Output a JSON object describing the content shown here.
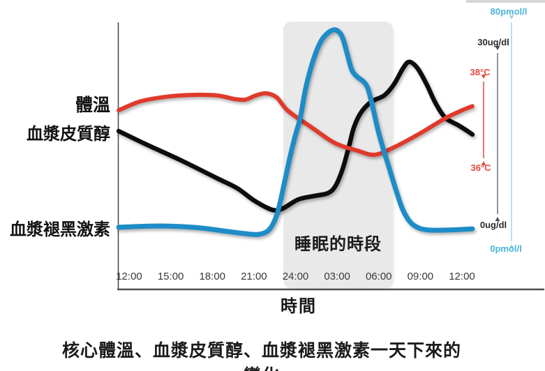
{
  "caption": "核心體溫、血漿皮質醇、血漿褪黑激素一天下來的變化",
  "chart_data": {
    "type": "line",
    "title": "",
    "x_axis": {
      "label": "時間",
      "tick_labels": [
        "12:00",
        "15:00",
        "18:00",
        "21:00",
        "24:00",
        "03:00",
        "06:00",
        "09:00",
        "12:00"
      ],
      "tick_hours": [
        12,
        15,
        18,
        21,
        24,
        27,
        30,
        33,
        36
      ]
    },
    "sleep_band": {
      "label": "睡眠的時段",
      "start_hour": 23.1,
      "end_hour": 31.0,
      "color": "#e9e9e9"
    },
    "series": [
      {
        "name": "體溫",
        "color": "#e03a2b",
        "axis": {
          "max_label": "38°C",
          "min_label": "36°C",
          "max": 38,
          "min": 36,
          "unit": "°C",
          "label_color": "#e2493c"
        },
        "points": [
          [
            11.25,
            37.24
          ],
          [
            12.75,
            37.45
          ],
          [
            14.5,
            37.56
          ],
          [
            16.3,
            37.61
          ],
          [
            18.3,
            37.6
          ],
          [
            19.65,
            37.51
          ],
          [
            20.4,
            37.5
          ],
          [
            21.15,
            37.6
          ],
          [
            21.9,
            37.65
          ],
          [
            22.65,
            37.55
          ],
          [
            23.45,
            37.23
          ],
          [
            25.2,
            36.82
          ],
          [
            26.85,
            36.45
          ],
          [
            28.45,
            36.27
          ],
          [
            29.7,
            36.17
          ],
          [
            31.1,
            36.35
          ],
          [
            32.9,
            36.67
          ],
          [
            34.75,
            37.04
          ],
          [
            36.0,
            37.24
          ],
          [
            36.75,
            37.34
          ]
        ]
      },
      {
        "name": "血漿皮質醇",
        "color": "#0d0d0d",
        "axis": {
          "max_label": "30ug/dl",
          "min_label": "0ug/dl",
          "max": 30,
          "min": 0,
          "unit": "ug/dl",
          "label_color": "#2b2b2b"
        },
        "points": [
          [
            11.25,
            15.5
          ],
          [
            13.25,
            13.1
          ],
          [
            15.75,
            10.25
          ],
          [
            18.3,
            7.1
          ],
          [
            19.8,
            5.25
          ],
          [
            21.05,
            3.0
          ],
          [
            22.3,
            1.4
          ],
          [
            23.05,
            1.6
          ],
          [
            24.2,
            3.25
          ],
          [
            25.4,
            3.9
          ],
          [
            26.35,
            4.4
          ],
          [
            26.9,
            5.75
          ],
          [
            27.4,
            8.75
          ],
          [
            27.85,
            12.75
          ],
          [
            28.2,
            16.1
          ],
          [
            28.7,
            18.75
          ],
          [
            29.45,
            20.75
          ],
          [
            30.4,
            21.9
          ],
          [
            31.1,
            23.9
          ],
          [
            31.75,
            26.75
          ],
          [
            32.2,
            27.9
          ],
          [
            32.8,
            26.75
          ],
          [
            33.45,
            23.9
          ],
          [
            34.1,
            20.5
          ],
          [
            34.8,
            17.9
          ],
          [
            35.7,
            16.6
          ],
          [
            36.4,
            15.5
          ],
          [
            36.75,
            14.9
          ]
        ]
      },
      {
        "name": "血漿褪黑激素",
        "color": "#1d8cc7",
        "axis": {
          "max_label": "80pmol/l",
          "min_label": "0pmol/l",
          "max": 80,
          "min": 0,
          "unit": "pmol/l",
          "label_color": "#49b4d9"
        },
        "points": [
          [
            11.25,
            6.0
          ],
          [
            14.25,
            6.45
          ],
          [
            16.75,
            5.95
          ],
          [
            18.8,
            4.7
          ],
          [
            20.3,
            3.75
          ],
          [
            21.4,
            3.5
          ],
          [
            22.15,
            5.45
          ],
          [
            22.7,
            11.2
          ],
          [
            23.2,
            21.9
          ],
          [
            23.6,
            31.05
          ],
          [
            24.0,
            39.0
          ],
          [
            24.35,
            45.2
          ],
          [
            24.75,
            55.9
          ],
          [
            25.25,
            65.1
          ],
          [
            25.8,
            72.0
          ],
          [
            26.35,
            75.3
          ],
          [
            26.9,
            76.3
          ],
          [
            27.35,
            74.0
          ],
          [
            27.7,
            68.3
          ],
          [
            28.05,
            62.1
          ],
          [
            28.45,
            59.6
          ],
          [
            28.85,
            58.1
          ],
          [
            29.2,
            55.65
          ],
          [
            29.55,
            49.2
          ],
          [
            29.9,
            41.5
          ],
          [
            30.3,
            34.3
          ],
          [
            30.75,
            27.1
          ],
          [
            31.2,
            19.9
          ],
          [
            31.7,
            12.65
          ],
          [
            32.25,
            7.95
          ],
          [
            32.9,
            5.7
          ],
          [
            33.65,
            5.0
          ],
          [
            34.9,
            5.0
          ],
          [
            35.9,
            5.2
          ],
          [
            36.75,
            5.45
          ]
        ]
      }
    ]
  }
}
